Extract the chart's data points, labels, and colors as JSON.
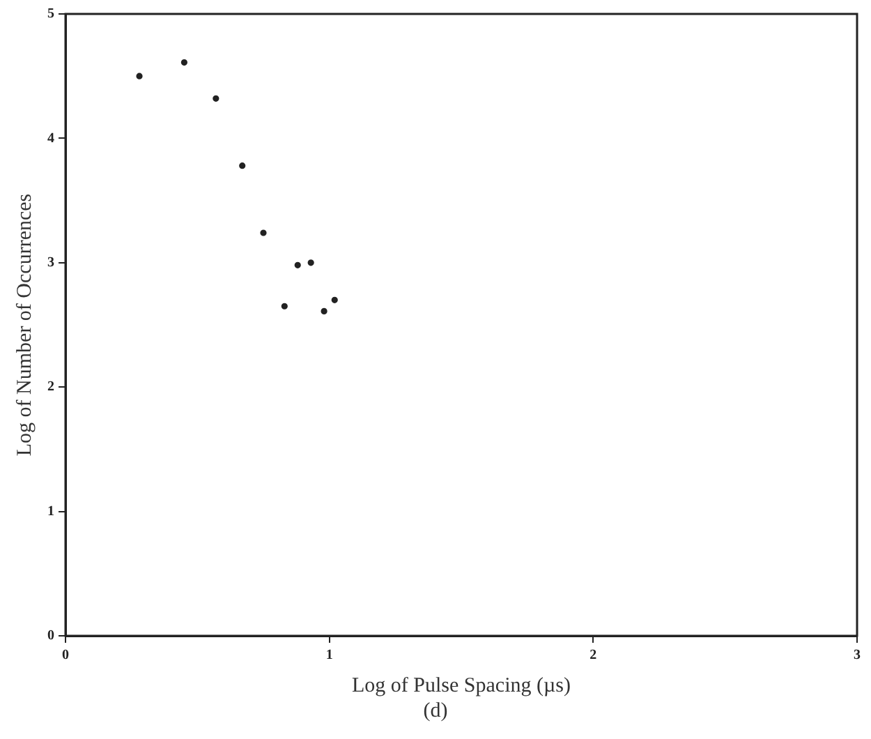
{
  "chart_data": {
    "type": "scatter",
    "xlabel": "Log of Pulse Spacing (µs)",
    "ylabel": "Log of Number of Occurrences",
    "annotations": [
      "(d)"
    ],
    "x": [
      0.28,
      0.45,
      0.57,
      0.67,
      0.75,
      0.83,
      0.88,
      0.93,
      0.98,
      1.02
    ],
    "series": [
      {
        "color": "#222222",
        "values": [
          4.5,
          4.61,
          4.32,
          3.78,
          3.24,
          2.65,
          2.98,
          3.0,
          2.61,
          2.7
        ]
      }
    ],
    "xlim": [
      0,
      3
    ],
    "xticks": [
      0,
      1,
      2,
      3
    ],
    "ylim": [
      0,
      5
    ],
    "yticks": [
      0,
      1,
      2,
      3,
      4,
      5
    ],
    "grid": false,
    "legend": false,
    "marker": "circle"
  }
}
